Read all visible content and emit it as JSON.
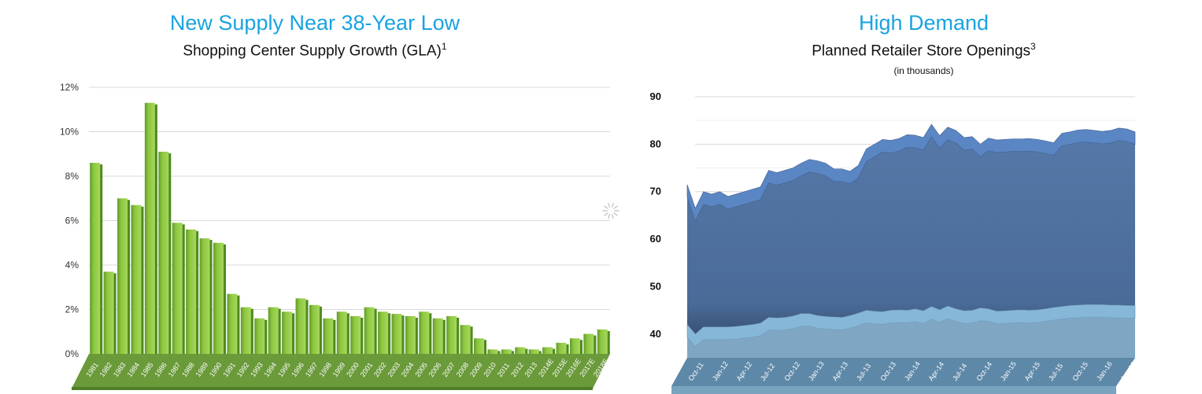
{
  "left": {
    "title": "New Supply Near 38-Year Low",
    "subtitle": "Shopping Center Supply Growth (GLA)",
    "subtitle_sup": "1"
  },
  "right": {
    "title": "High Demand",
    "subtitle": "Planned Retailer Store Openings",
    "subtitle_sup": "3",
    "note": "(in thousands)"
  },
  "colors": {
    "title": "#1aa3e0",
    "bar": "#8cc63f",
    "bar_dark": "#5f9a2a",
    "floor": "#6a9a3a",
    "area_top": "#5b86c4",
    "area_main": "#4f73a1",
    "area_bottom": "#86b7d8",
    "floor_right": "#5e88a8"
  },
  "icons": {
    "loading": "spinner-icon"
  },
  "chart_data": [
    {
      "type": "bar",
      "title": "New Supply Near 38-Year Low",
      "subtitle": "Shopping Center Supply Growth (GLA)",
      "categories": [
        "1981",
        "1982",
        "1983",
        "1984",
        "1985",
        "1986",
        "1987",
        "1988",
        "1989",
        "1990",
        "1991",
        "1992",
        "1993",
        "1994",
        "1995",
        "1996",
        "1997",
        "1998",
        "1999",
        "2000",
        "2001",
        "2002",
        "2003",
        "2004",
        "2005",
        "2006",
        "2007",
        "2008",
        "2009",
        "2010",
        "2011",
        "2012",
        "2013",
        "2014E",
        "2015E",
        "2016E",
        "2017E",
        "2018E"
      ],
      "values": [
        8.6,
        3.7,
        7.0,
        6.7,
        11.3,
        9.1,
        5.9,
        5.6,
        5.2,
        5.0,
        2.7,
        2.1,
        1.6,
        2.1,
        1.9,
        2.5,
        2.2,
        1.6,
        1.9,
        1.7,
        2.1,
        1.9,
        1.8,
        1.7,
        1.9,
        1.6,
        1.7,
        1.3,
        0.7,
        0.2,
        0.2,
        0.3,
        0.2,
        0.3,
        0.5,
        0.7,
        0.9,
        1.1
      ],
      "yticks": [
        "0%",
        "2%",
        "4%",
        "6%",
        "8%",
        "10%",
        "12%"
      ],
      "ylim": [
        0,
        12
      ],
      "grid": true
    },
    {
      "type": "area",
      "title": "High Demand",
      "subtitle": "Planned Retailer Store Openings",
      "note": "(in thousands)",
      "x_labels": [
        "Oct-11",
        "Jan-12",
        "Apr-12",
        "Jul-12",
        "Oct-12",
        "Jan-13",
        "Apr-13",
        "Jul-13",
        "Oct-13",
        "Jan-14",
        "Apr-14",
        "Jul-14",
        "Oct-14",
        "Jan-15",
        "Apr-15",
        "Jul-15",
        "Oct-15",
        "Jan-16",
        "Apr-16"
      ],
      "x": [
        "Oct-11",
        "Nov-11",
        "Dec-11",
        "Jan-12",
        "Feb-12",
        "Mar-12",
        "Apr-12",
        "May-12",
        "Jun-12",
        "Jul-12",
        "Aug-12",
        "Sep-12",
        "Oct-12",
        "Nov-12",
        "Dec-12",
        "Jan-13",
        "Feb-13",
        "Mar-13",
        "Apr-13",
        "May-13",
        "Jun-13",
        "Jul-13",
        "Aug-13",
        "Sep-13",
        "Oct-13",
        "Nov-13",
        "Dec-13",
        "Jan-14",
        "Feb-14",
        "Mar-14",
        "Apr-14",
        "May-14",
        "Jun-14",
        "Jul-14",
        "Aug-14",
        "Sep-14",
        "Oct-14",
        "Nov-14",
        "Dec-14",
        "Jan-15",
        "Feb-15",
        "Mar-15",
        "Apr-15",
        "May-15",
        "Jun-15",
        "Jul-15",
        "Aug-15",
        "Sep-15",
        "Oct-15",
        "Nov-15",
        "Dec-15",
        "Jan-16",
        "Feb-16",
        "Mar-16",
        "Apr-16",
        "May-16"
      ],
      "series": [
        {
          "values": [
            71.5,
            66.5,
            70.0,
            69.5,
            70.0,
            69.0,
            69.5,
            70.0,
            70.5,
            71.0,
            74.5,
            74.0,
            74.5,
            75.0,
            76.0,
            76.8,
            76.5,
            76.0,
            74.8,
            74.8,
            74.3,
            75.5,
            79.0,
            80.0,
            81.0,
            80.8,
            81.2,
            82.0,
            81.9,
            81.4,
            84.2,
            81.8,
            83.6,
            82.9,
            81.4,
            81.6,
            80.0,
            81.3,
            80.9,
            81.0,
            81.1,
            81.1,
            81.2,
            81.0,
            80.7,
            80.3,
            82.3,
            82.6,
            83.0,
            83.1,
            82.9,
            82.7,
            82.9,
            83.4,
            83.2,
            82.6
          ]
        },
        {
          "values": [
            42.0,
            40.0,
            41.5,
            41.5,
            41.5,
            41.5,
            41.6,
            41.8,
            42.0,
            42.3,
            43.5,
            43.4,
            43.5,
            43.8,
            44.3,
            44.3,
            43.9,
            43.7,
            43.6,
            43.5,
            43.9,
            44.4,
            45.0,
            44.8,
            44.7,
            45.0,
            45.1,
            45.0,
            45.3,
            44.9,
            45.8,
            45.1,
            45.9,
            45.3,
            44.9,
            45.0,
            45.5,
            45.3,
            44.8,
            44.9,
            45.0,
            45.1,
            45.0,
            45.1,
            45.3,
            45.6,
            45.8,
            46.0,
            46.1,
            46.2,
            46.2,
            46.2,
            46.1,
            46.1,
            46.0,
            46.0
          ]
        }
      ],
      "yticks": [
        "40",
        "50",
        "60",
        "70",
        "80",
        "90"
      ],
      "ylim": [
        35,
        90
      ],
      "grid": true
    }
  ]
}
